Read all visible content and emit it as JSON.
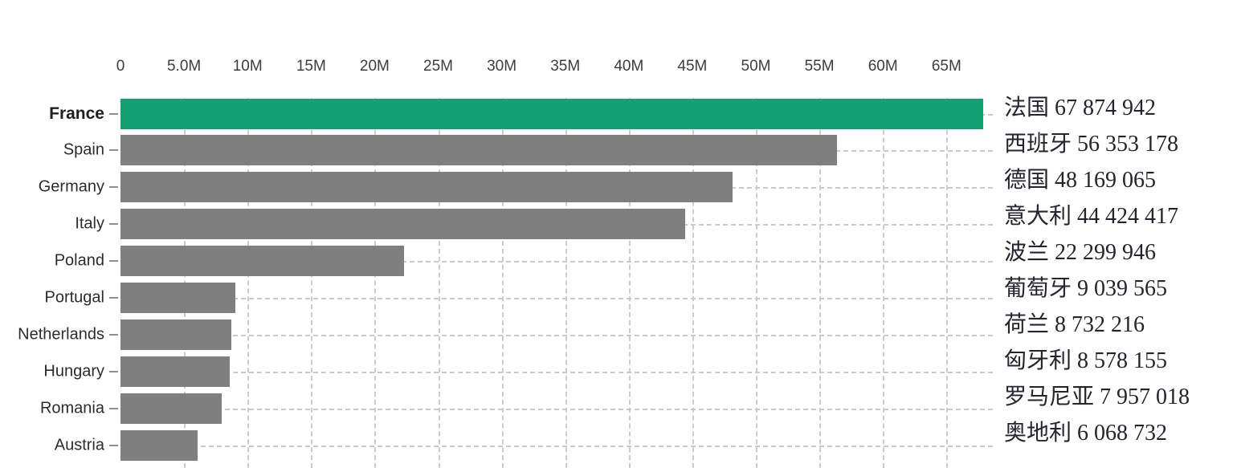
{
  "chart_data": {
    "type": "bar",
    "orientation": "horizontal",
    "title": "",
    "categories": [
      "France",
      "Spain",
      "Germany",
      "Italy",
      "Poland",
      "Portugal",
      "Netherlands",
      "Hungary",
      "Romania",
      "Austria"
    ],
    "values": [
      67874942,
      56353178,
      48169065,
      44424417,
      22299946,
      9039565,
      8732216,
      8578155,
      7957018,
      6068732
    ],
    "highlight_category": "France",
    "x_axis": {
      "position": "top",
      "tick_labels": [
        "0",
        "5.0M",
        "10M",
        "15M",
        "20M",
        "25M",
        "30M",
        "35M",
        "40M",
        "45M",
        "50M",
        "55M",
        "60M",
        "65M"
      ],
      "tick_values_m": [
        0,
        5,
        10,
        15,
        20,
        25,
        30,
        35,
        40,
        45,
        50,
        55,
        60,
        65
      ],
      "range_m": [
        0,
        68.6
      ]
    },
    "grid": "dotted",
    "legend_position": "none",
    "colors": {
      "highlight_bar": "#12a172",
      "bar": "#7f7f7f",
      "gridline": "#cccccc",
      "axis_text": "#3d3d3d",
      "category_text": "#2c2c2c"
    }
  },
  "side_panel": {
    "text_color": "#24242e",
    "lines": [
      {
        "country": "法国",
        "value": "67 874 942"
      },
      {
        "country": "西班牙",
        "value": "56 353 178"
      },
      {
        "country": "德国",
        "value": "48 169 065"
      },
      {
        "country": "意大利",
        "value": "44 424 417"
      },
      {
        "country": "波兰",
        "value": "22 299 946"
      },
      {
        "country": "葡萄牙",
        "value": "9 039 565"
      },
      {
        "country": "荷兰",
        "value": "8 732 216"
      },
      {
        "country": "匈牙利",
        "value": "8 578 155"
      },
      {
        "country": "罗马尼亚",
        "value": "7 957 018"
      },
      {
        "country": "奥地利",
        "value": "6 068 732"
      }
    ]
  }
}
